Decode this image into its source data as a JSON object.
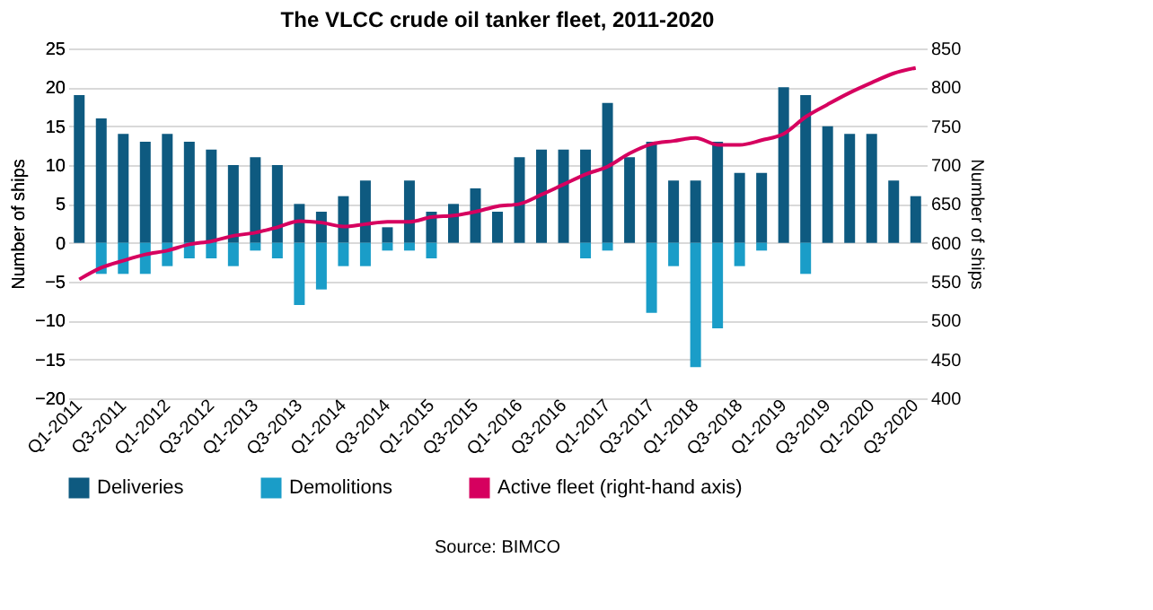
{
  "chart_data": {
    "type": "bar",
    "title": "The VLCC crude oil tanker fleet, 2011-2020",
    "categories": [
      "Q1-2011",
      null,
      "Q3-2011",
      null,
      "Q1-2012",
      null,
      "Q3-2012",
      null,
      "Q1-2013",
      null,
      "Q3-2013",
      null,
      "Q1-2014",
      null,
      "Q3-2014",
      null,
      "Q1-2015",
      null,
      "Q3-2015",
      null,
      "Q1-2016",
      null,
      "Q3-2016",
      null,
      "Q1-2017",
      null,
      "Q3-2017",
      null,
      "Q1-2018",
      null,
      "Q3-2018",
      null,
      "Q1-2019",
      null,
      "Q3-2019",
      null,
      "Q1-2020",
      null,
      "Q3-2020"
    ],
    "series": [
      {
        "name": "Deliveries",
        "color": "#0e5a80",
        "values": [
          19,
          16,
          14,
          13,
          14,
          13,
          12,
          10,
          11,
          10,
          5,
          4,
          6,
          8,
          2,
          8,
          4,
          5,
          7,
          4,
          11,
          12,
          12,
          12,
          18,
          11,
          13,
          8,
          8,
          13,
          9,
          9,
          20,
          19,
          15,
          14,
          14,
          8,
          6
        ]
      },
      {
        "name": "Demolitions",
        "color": "#1a9dc8",
        "values": [
          0,
          -4,
          -4,
          -4,
          -3,
          -2,
          -2,
          -3,
          -1,
          -2,
          -8,
          -6,
          -3,
          -3,
          -1,
          -1,
          -2,
          0,
          0,
          0,
          0,
          0,
          0,
          -2,
          -1,
          0,
          -9,
          -3,
          -16,
          -11,
          -3,
          -1,
          0,
          -4,
          0,
          0,
          0,
          0,
          0
        ]
      },
      {
        "name": "Active fleet (right-hand axis)",
        "type": "line",
        "axis": "y2",
        "color": "#d6005f",
        "values": [
          553,
          568,
          577,
          585,
          590,
          598,
          602,
          609,
          613,
          620,
          628,
          626,
          621,
          624,
          627,
          627,
          633,
          635,
          640,
          647,
          650,
          662,
          675,
          688,
          698,
          715,
          727,
          731,
          735,
          726,
          726,
          732,
          740,
          762,
          778,
          793,
          806,
          818,
          825
        ]
      }
    ],
    "ylabel": "Number of ships",
    "y2label": "Number of ships",
    "ylim": [
      -20,
      25
    ],
    "yticks": [
      -20,
      -15,
      -10,
      -5,
      0,
      5,
      10,
      15,
      20,
      25
    ],
    "y2lim": [
      400,
      850
    ],
    "y2ticks": [
      400,
      450,
      500,
      550,
      600,
      650,
      700,
      750,
      800,
      850
    ],
    "grid": "y",
    "legend": "bottom",
    "stacked": true,
    "annotations": [
      "Source: BIMCO"
    ]
  }
}
